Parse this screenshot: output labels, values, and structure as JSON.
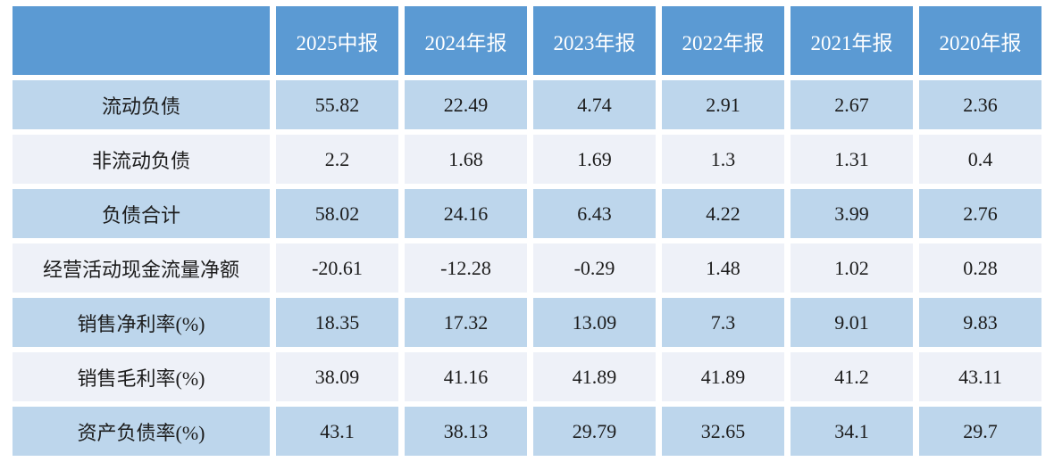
{
  "chart_data": {
    "type": "table",
    "corner_label": "",
    "columns": [
      "2025中报",
      "2024年报",
      "2023年报",
      "2022年报",
      "2021年报",
      "2020年报"
    ],
    "rows": [
      {
        "label": "流动负债",
        "values": [
          55.82,
          22.49,
          4.74,
          2.91,
          2.67,
          2.36
        ]
      },
      {
        "label": "非流动负债",
        "values": [
          2.2,
          1.68,
          1.69,
          1.3,
          1.31,
          0.4
        ]
      },
      {
        "label": "负债合计",
        "values": [
          58.02,
          24.16,
          6.43,
          4.22,
          3.99,
          2.76
        ]
      },
      {
        "label": "经营活动现金流量净额",
        "values": [
          -20.61,
          -12.28,
          -0.29,
          1.48,
          1.02,
          0.28
        ]
      },
      {
        "label": "销售净利率(%)",
        "values": [
          18.35,
          17.32,
          13.09,
          7.3,
          9.01,
          9.83
        ]
      },
      {
        "label": "销售毛利率(%)",
        "values": [
          38.09,
          41.16,
          41.89,
          41.89,
          41.2,
          43.11
        ]
      },
      {
        "label": "资产负债率(%)",
        "values": [
          43.1,
          38.13,
          29.79,
          32.65,
          34.1,
          29.7
        ]
      }
    ],
    "layout": {
      "row_striping": [
        "blue",
        "light"
      ],
      "grid": "white gaps between cells",
      "alignment": "center"
    },
    "colors": {
      "header_bg": "#5b9ad3",
      "header_text": "#ffffff",
      "row_blue_bg": "#bdd6ec",
      "row_light_bg": "#eef1f8",
      "body_text": "#1c1c1c",
      "gap": "#ffffff"
    }
  }
}
